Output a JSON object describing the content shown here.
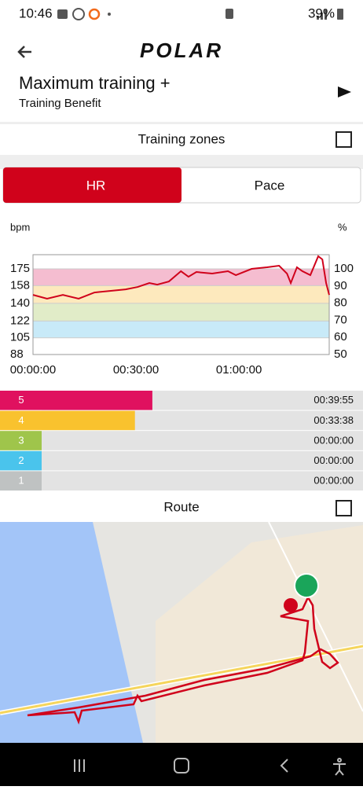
{
  "status_bar": {
    "time": "10:46",
    "battery": "39%"
  },
  "header": {
    "logo": "POLAR",
    "title": "Maximum training +",
    "subtitle": "Training Benefit"
  },
  "sections": {
    "zones": "Training zones",
    "route": "Route"
  },
  "tabs": [
    "HR",
    "Pace"
  ],
  "chart_data": {
    "type": "line",
    "y_label": "bpm",
    "y2_label": "%",
    "x": [
      0,
      4.1,
      8.7,
      13.3,
      17.9,
      22.4,
      27.0,
      30.5,
      33.9,
      36.2,
      39.6,
      43.1,
      45.3,
      47.6,
      52.2,
      56.8,
      59.1,
      63.7,
      68.2,
      71.7,
      74.0,
      75.1,
      76.9,
      78.5,
      80.8,
      83.1,
      84.3,
      85.4,
      86.3
    ],
    "series": [
      {
        "color": "#d0021b",
        "values": [
          148.6,
          144.7,
          148.6,
          144.7,
          151.0,
          152.6,
          154.2,
          156.6,
          160.6,
          159.0,
          162.2,
          172.6,
          167.0,
          171.8,
          170.2,
          172.6,
          168.6,
          175.0,
          176.6,
          178.2,
          170.2,
          160.6,
          176.6,
          172.6,
          168.6,
          187.8,
          184.6,
          160.6,
          148.6
        ]
      }
    ],
    "xlim": [
      0,
      86.3
    ],
    "xticks": [
      {
        "value": 0,
        "label": "00:00:00"
      },
      {
        "value": 30,
        "label": "00:30:00"
      },
      {
        "value": 60,
        "label": "01:00:00"
      }
    ],
    "ylim": [
      88,
      189.4
    ],
    "yticks": [
      88,
      105,
      122,
      140,
      158,
      175
    ],
    "y2lim": [
      50,
      108.3
    ],
    "y2ticks": [
      50,
      60,
      70,
      80,
      90,
      100
    ],
    "zones": [
      {
        "color": "#f5bdd0",
        "from": 158,
        "to": 175
      },
      {
        "color": "#fde9bd",
        "from": 140,
        "to": 158
      },
      {
        "color": "#e1ecc8",
        "from": 122,
        "to": 140
      },
      {
        "color": "#c8eaf8",
        "from": 105,
        "to": 122
      }
    ]
  },
  "zone_bars": {
    "type": "bar",
    "categories": [
      "5",
      "4",
      "3",
      "2",
      "1"
    ],
    "colors": [
      "#e0115f",
      "#f9c22e",
      "#9fc54b",
      "#4ac4ec",
      "#bfc2c2"
    ],
    "values": [
      39.9167,
      33.6333,
      0,
      0,
      0
    ],
    "value_labels": [
      "00:39:55",
      "00:33:38",
      "00:00:00",
      "00:00:00",
      "00:00:00"
    ]
  }
}
